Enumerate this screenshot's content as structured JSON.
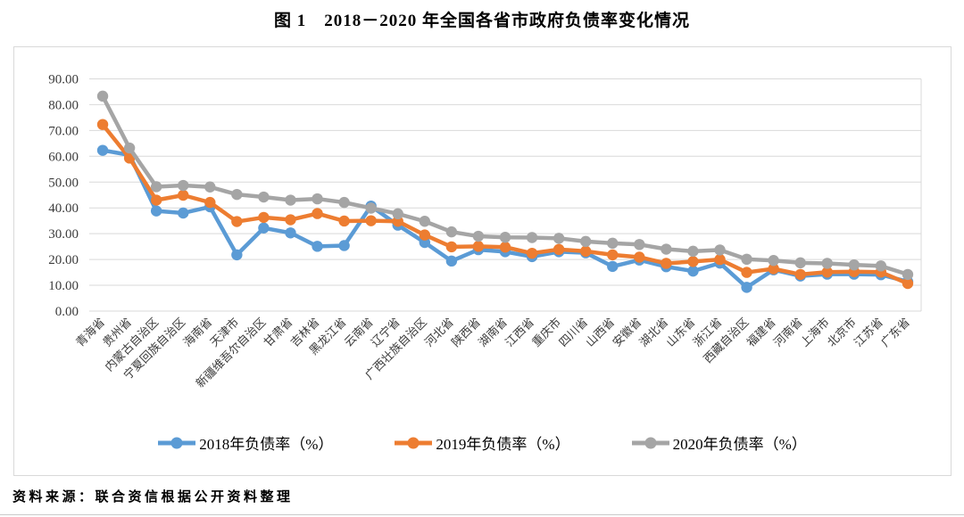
{
  "page": {
    "title": "图 1　2018－2020 年全国各省市政府负债率变化情况",
    "source_note": "资料来源：联合资信根据公开资料整理"
  },
  "chart_data": {
    "type": "line",
    "title": "图 1　2018－2020 年全国各省市政府负债率变化情况",
    "categories": [
      "青海省",
      "贵州省",
      "内蒙古自治区",
      "宁夏回族自治区",
      "海南省",
      "天津市",
      "新疆维吾尔自治区",
      "甘肃省",
      "吉林省",
      "黑龙江省",
      "云南省",
      "辽宁省",
      "广西壮族自治区",
      "河北省",
      "陕西省",
      "湖南省",
      "江西省",
      "重庆市",
      "四川省",
      "山西省",
      "安徽省",
      "湖北省",
      "山东省",
      "浙江省",
      "西藏自治区",
      "福建省",
      "河南省",
      "上海市",
      "北京市",
      "江苏省",
      "广东省"
    ],
    "series": [
      {
        "name": "2018年负债率（%）",
        "color": "#5B9BD5",
        "values": [
          62.3,
          60.5,
          38.8,
          38.0,
          40.4,
          21.8,
          32.2,
          30.3,
          25.1,
          25.4,
          40.7,
          33.3,
          26.6,
          19.4,
          23.8,
          23.0,
          21.1,
          23.0,
          22.6,
          17.3,
          19.8,
          17.2,
          15.5,
          18.6,
          9.2,
          16.0,
          13.6,
          14.3,
          14.3,
          14.1,
          11.4
        ]
      },
      {
        "name": "2019年负债率（%）",
        "color": "#ED7D31",
        "values": [
          72.3,
          59.3,
          43.0,
          44.9,
          42.1,
          34.7,
          36.3,
          35.4,
          37.8,
          34.9,
          35.0,
          34.8,
          29.5,
          24.9,
          25.1,
          24.8,
          22.4,
          23.9,
          23.2,
          21.8,
          20.9,
          18.5,
          19.2,
          20.0,
          15.0,
          16.4,
          14.2,
          15.1,
          15.3,
          15.1,
          10.7
        ]
      },
      {
        "name": "2020年负债率（%）",
        "color": "#A5A5A5",
        "values": [
          83.3,
          63.2,
          48.2,
          48.7,
          48.1,
          45.2,
          44.2,
          43.0,
          43.5,
          42.1,
          39.9,
          37.7,
          34.8,
          30.7,
          29.0,
          28.6,
          28.5,
          28.2,
          27.0,
          26.3,
          25.8,
          24.0,
          23.2,
          23.7,
          20.1,
          19.6,
          18.7,
          18.5,
          17.9,
          17.5,
          14.2
        ]
      }
    ],
    "ylim": [
      0,
      90
    ],
    "ytick_step": 10,
    "ytick_labels": [
      "0.00",
      "10.00",
      "20.00",
      "30.00",
      "40.00",
      "50.00",
      "60.00",
      "70.00",
      "80.00",
      "90.00"
    ],
    "grid": "horizontal",
    "legend_position": "bottom",
    "x_label_rotation": -45
  },
  "style": {
    "grid_color": "#d9d9d9",
    "frame_color": "#d9d9d9",
    "axis_text_color": "#3b3b3b",
    "line_width": 4.5,
    "marker_radius": 6.2
  }
}
